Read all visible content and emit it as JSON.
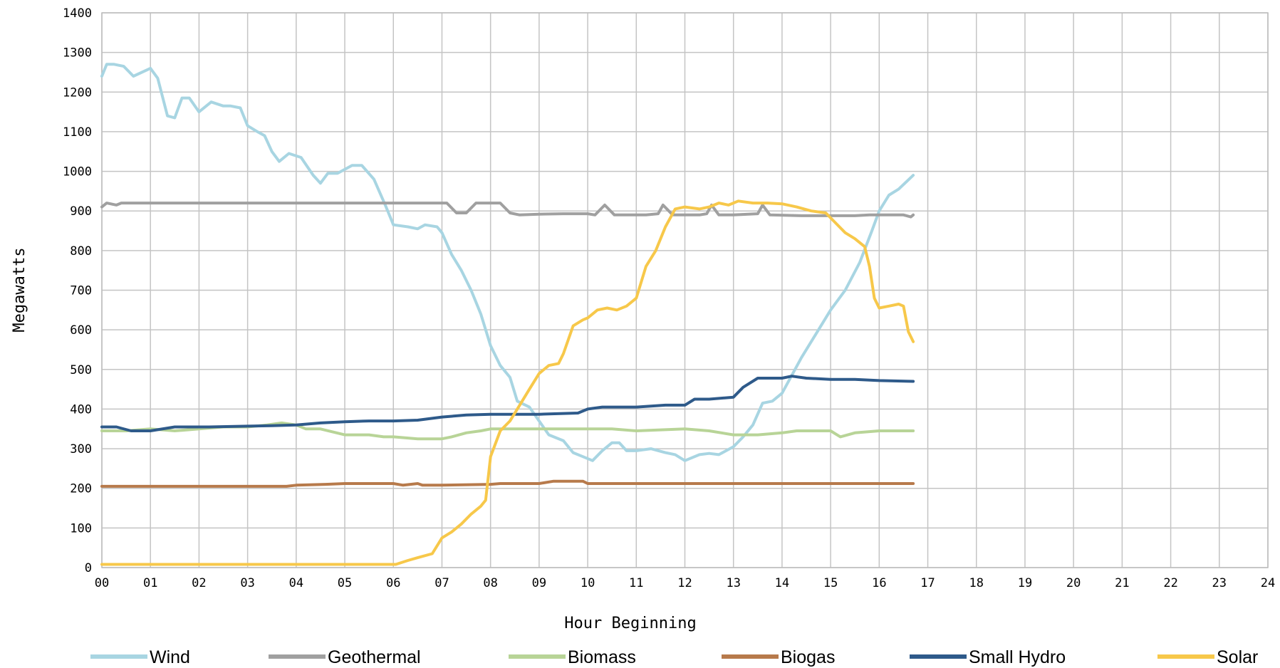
{
  "chart_data": {
    "type": "line",
    "xlabel": "Hour Beginning",
    "ylabel": "Megawatts",
    "xlim": [
      0,
      24
    ],
    "ylim": [
      0,
      1400
    ],
    "x_ticks": [
      "00",
      "01",
      "02",
      "03",
      "04",
      "05",
      "06",
      "07",
      "08",
      "09",
      "10",
      "11",
      "12",
      "13",
      "14",
      "15",
      "16",
      "17",
      "18",
      "19",
      "20",
      "21",
      "22",
      "23",
      "24"
    ],
    "y_ticks": [
      0,
      100,
      200,
      300,
      400,
      500,
      600,
      700,
      800,
      900,
      1000,
      1100,
      1200,
      1300,
      1400
    ],
    "grid": true,
    "legend_position": "bottom",
    "series": [
      {
        "name": "Wind",
        "color": "#a8d5e2",
        "points": [
          [
            0,
            1240
          ],
          [
            0.1,
            1270
          ],
          [
            0.25,
            1270
          ],
          [
            0.45,
            1265
          ],
          [
            0.65,
            1240
          ],
          [
            1,
            1260
          ],
          [
            1.15,
            1235
          ],
          [
            1.35,
            1140
          ],
          [
            1.5,
            1135
          ],
          [
            1.65,
            1185
          ],
          [
            1.8,
            1185
          ],
          [
            2,
            1150
          ],
          [
            2.25,
            1175
          ],
          [
            2.5,
            1165
          ],
          [
            2.65,
            1165
          ],
          [
            2.85,
            1160
          ],
          [
            3,
            1115
          ],
          [
            3.2,
            1100
          ],
          [
            3.35,
            1090
          ],
          [
            3.5,
            1050
          ],
          [
            3.65,
            1025
          ],
          [
            3.85,
            1045
          ],
          [
            4.1,
            1035
          ],
          [
            4.35,
            990
          ],
          [
            4.5,
            970
          ],
          [
            4.65,
            995
          ],
          [
            4.85,
            995
          ],
          [
            5.15,
            1015
          ],
          [
            5.35,
            1015
          ],
          [
            5.6,
            980
          ],
          [
            5.85,
            910
          ],
          [
            6,
            865
          ],
          [
            6.3,
            860
          ],
          [
            6.5,
            855
          ],
          [
            6.65,
            865
          ],
          [
            6.9,
            860
          ],
          [
            7,
            845
          ],
          [
            7.2,
            790
          ],
          [
            7.4,
            750
          ],
          [
            7.6,
            700
          ],
          [
            7.8,
            640
          ],
          [
            8,
            560
          ],
          [
            8.2,
            510
          ],
          [
            8.4,
            480
          ],
          [
            8.55,
            420
          ],
          [
            8.8,
            405
          ],
          [
            9.2,
            335
          ],
          [
            9.5,
            320
          ],
          [
            9.7,
            290
          ],
          [
            9.9,
            280
          ],
          [
            10.1,
            270
          ],
          [
            10.3,
            295
          ],
          [
            10.5,
            315
          ],
          [
            10.65,
            315
          ],
          [
            10.8,
            295
          ],
          [
            11,
            295
          ],
          [
            11.3,
            300
          ],
          [
            11.6,
            290
          ],
          [
            11.8,
            285
          ],
          [
            12,
            270
          ],
          [
            12.3,
            285
          ],
          [
            12.5,
            288
          ],
          [
            12.7,
            285
          ],
          [
            13,
            305
          ],
          [
            13.2,
            330
          ],
          [
            13.4,
            360
          ],
          [
            13.6,
            415
          ],
          [
            13.8,
            420
          ],
          [
            14,
            440
          ],
          [
            14.2,
            485
          ],
          [
            14.4,
            530
          ],
          [
            14.7,
            590
          ],
          [
            15,
            650
          ],
          [
            15.3,
            700
          ],
          [
            15.6,
            770
          ],
          [
            15.85,
            850
          ],
          [
            16,
            900
          ],
          [
            16.2,
            940
          ],
          [
            16.4,
            955
          ],
          [
            16.7,
            990
          ]
        ]
      },
      {
        "name": "Geothermal",
        "color": "#a0a0a0",
        "points": [
          [
            0,
            910
          ],
          [
            0.1,
            920
          ],
          [
            0.3,
            915
          ],
          [
            0.4,
            920
          ],
          [
            1,
            920
          ],
          [
            2,
            920
          ],
          [
            3,
            920
          ],
          [
            4,
            920
          ],
          [
            5,
            920
          ],
          [
            6,
            920
          ],
          [
            7,
            920
          ],
          [
            7.1,
            920
          ],
          [
            7.3,
            895
          ],
          [
            7.5,
            895
          ],
          [
            7.7,
            920
          ],
          [
            8.2,
            920
          ],
          [
            8.4,
            895
          ],
          [
            8.6,
            890
          ],
          [
            9,
            892
          ],
          [
            9.5,
            893
          ],
          [
            10,
            893
          ],
          [
            10.15,
            890
          ],
          [
            10.35,
            915
          ],
          [
            10.55,
            890
          ],
          [
            11.2,
            890
          ],
          [
            11.45,
            893
          ],
          [
            11.55,
            915
          ],
          [
            11.75,
            890
          ],
          [
            12.3,
            890
          ],
          [
            12.45,
            893
          ],
          [
            12.55,
            915
          ],
          [
            12.7,
            890
          ],
          [
            13,
            890
          ],
          [
            13.5,
            893
          ],
          [
            13.6,
            915
          ],
          [
            13.75,
            890
          ],
          [
            14.4,
            888
          ],
          [
            15,
            888
          ],
          [
            15.5,
            888
          ],
          [
            15.8,
            890
          ],
          [
            16.5,
            890
          ],
          [
            16.65,
            885
          ],
          [
            16.7,
            890
          ]
        ]
      },
      {
        "name": "Biomass",
        "color": "#b8d497",
        "points": [
          [
            0,
            345
          ],
          [
            0.5,
            345
          ],
          [
            1,
            350
          ],
          [
            1.5,
            345
          ],
          [
            2,
            350
          ],
          [
            2.5,
            355
          ],
          [
            3,
            355
          ],
          [
            3.4,
            360
          ],
          [
            3.7,
            365
          ],
          [
            4,
            360
          ],
          [
            4.2,
            350
          ],
          [
            4.5,
            350
          ],
          [
            5,
            335
          ],
          [
            5.5,
            335
          ],
          [
            5.8,
            330
          ],
          [
            6,
            330
          ],
          [
            6.5,
            325
          ],
          [
            7,
            325
          ],
          [
            7.2,
            330
          ],
          [
            7.5,
            340
          ],
          [
            7.8,
            345
          ],
          [
            8,
            350
          ],
          [
            9,
            350
          ],
          [
            9.5,
            350
          ],
          [
            10,
            350
          ],
          [
            10.5,
            350
          ],
          [
            11,
            345
          ],
          [
            12,
            350
          ],
          [
            12.5,
            345
          ],
          [
            13,
            335
          ],
          [
            13.5,
            335
          ],
          [
            14,
            340
          ],
          [
            14.3,
            345
          ],
          [
            15,
            345
          ],
          [
            15.2,
            330
          ],
          [
            15.5,
            340
          ],
          [
            16,
            345
          ],
          [
            16.5,
            345
          ],
          [
            16.7,
            345
          ]
        ]
      },
      {
        "name": "Biogas",
        "color": "#b77a4b",
        "points": [
          [
            0,
            205
          ],
          [
            1,
            205
          ],
          [
            2,
            205
          ],
          [
            3,
            205
          ],
          [
            3.8,
            205
          ],
          [
            4,
            208
          ],
          [
            4.6,
            210
          ],
          [
            5,
            212
          ],
          [
            6,
            212
          ],
          [
            6.2,
            208
          ],
          [
            6.5,
            212
          ],
          [
            6.6,
            208
          ],
          [
            7,
            208
          ],
          [
            8,
            210
          ],
          [
            8.2,
            212
          ],
          [
            9,
            212
          ],
          [
            9.3,
            218
          ],
          [
            9.9,
            218
          ],
          [
            10,
            212
          ],
          [
            11,
            212
          ],
          [
            12,
            212
          ],
          [
            13,
            212
          ],
          [
            14,
            212
          ],
          [
            15,
            212
          ],
          [
            16,
            212
          ],
          [
            16.7,
            212
          ]
        ]
      },
      {
        "name": "Small Hydro",
        "color": "#2e5a8a",
        "points": [
          [
            0,
            355
          ],
          [
            0.3,
            355
          ],
          [
            0.6,
            345
          ],
          [
            1,
            345
          ],
          [
            1.5,
            355
          ],
          [
            2,
            355
          ],
          [
            2.2,
            355
          ],
          [
            3,
            357
          ],
          [
            3.5,
            358
          ],
          [
            4,
            360
          ],
          [
            4.5,
            365
          ],
          [
            5,
            368
          ],
          [
            5.5,
            370
          ],
          [
            6,
            370
          ],
          [
            6.5,
            372
          ],
          [
            7,
            380
          ],
          [
            7.5,
            385
          ],
          [
            8,
            387
          ],
          [
            9,
            387
          ],
          [
            9.8,
            390
          ],
          [
            10,
            400
          ],
          [
            10.3,
            405
          ],
          [
            11,
            405
          ],
          [
            11.6,
            410
          ],
          [
            12,
            410
          ],
          [
            12.2,
            425
          ],
          [
            12.5,
            425
          ],
          [
            13,
            430
          ],
          [
            13.2,
            455
          ],
          [
            13.5,
            478
          ],
          [
            14,
            478
          ],
          [
            14.2,
            483
          ],
          [
            14.5,
            478
          ],
          [
            15,
            475
          ],
          [
            15.5,
            475
          ],
          [
            16,
            472
          ],
          [
            16.7,
            470
          ]
        ]
      },
      {
        "name": "Solar",
        "color": "#f7c84a",
        "points": [
          [
            0,
            8
          ],
          [
            1,
            8
          ],
          [
            2,
            8
          ],
          [
            3,
            8
          ],
          [
            4,
            8
          ],
          [
            5,
            8
          ],
          [
            5.9,
            8
          ],
          [
            6.05,
            8
          ],
          [
            6.3,
            18
          ],
          [
            6.5,
            25
          ],
          [
            6.8,
            35
          ],
          [
            7,
            75
          ],
          [
            7.2,
            90
          ],
          [
            7.4,
            110
          ],
          [
            7.6,
            135
          ],
          [
            7.8,
            155
          ],
          [
            7.9,
            170
          ],
          [
            8,
            280
          ],
          [
            8.2,
            345
          ],
          [
            8.4,
            370
          ],
          [
            8.6,
            410
          ],
          [
            8.8,
            450
          ],
          [
            9,
            490
          ],
          [
            9.2,
            510
          ],
          [
            9.4,
            515
          ],
          [
            9.5,
            540
          ],
          [
            9.7,
            610
          ],
          [
            9.9,
            625
          ],
          [
            10,
            630
          ],
          [
            10.2,
            650
          ],
          [
            10.4,
            655
          ],
          [
            10.6,
            650
          ],
          [
            10.8,
            660
          ],
          [
            11,
            680
          ],
          [
            11.2,
            760
          ],
          [
            11.4,
            800
          ],
          [
            11.6,
            860
          ],
          [
            11.8,
            905
          ],
          [
            12,
            910
          ],
          [
            12.3,
            905
          ],
          [
            12.5,
            910
          ],
          [
            12.7,
            920
          ],
          [
            12.9,
            915
          ],
          [
            13.1,
            925
          ],
          [
            13.4,
            920
          ],
          [
            13.7,
            920
          ],
          [
            14,
            918
          ],
          [
            14.3,
            910
          ],
          [
            14.6,
            900
          ],
          [
            14.9,
            895
          ],
          [
            15.1,
            870
          ],
          [
            15.3,
            845
          ],
          [
            15.5,
            830
          ],
          [
            15.7,
            810
          ],
          [
            15.8,
            760
          ],
          [
            15.9,
            680
          ],
          [
            16,
            655
          ],
          [
            16.2,
            660
          ],
          [
            16.4,
            665
          ],
          [
            16.5,
            660
          ],
          [
            16.6,
            595
          ],
          [
            16.7,
            570
          ]
        ]
      }
    ]
  }
}
